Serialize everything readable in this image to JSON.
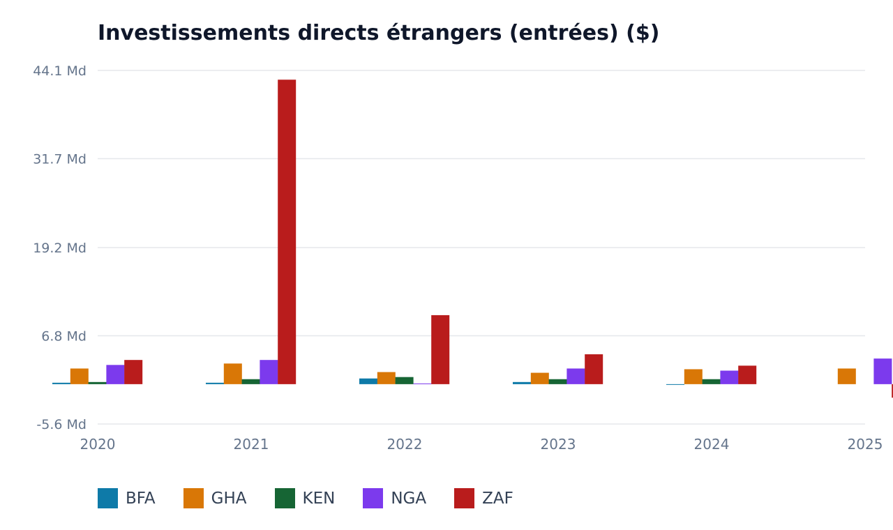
{
  "chart_data": {
    "type": "bar",
    "title": "Investissements directs étrangers (entrées) ($)",
    "xlabel": "",
    "ylabel": "",
    "categories": [
      "2020",
      "2021",
      "2022",
      "2023",
      "2024",
      "2025"
    ],
    "y_ticks": [
      {
        "value": 44.1,
        "label": "44.1 Md"
      },
      {
        "value": 31.7,
        "label": "31.7 Md"
      },
      {
        "value": 19.2,
        "label": "19.2 Md"
      },
      {
        "value": 6.8,
        "label": "6.8 Md"
      },
      {
        "value": -5.6,
        "label": "-5.6 Md"
      }
    ],
    "ylim": [
      -5.6,
      44.1
    ],
    "grid": true,
    "legend_position": "bottom-left",
    "series": [
      {
        "name": "BFA",
        "color": "#0e7aa8",
        "values": [
          0.2,
          0.2,
          0.8,
          0.3,
          0.0,
          null
        ]
      },
      {
        "name": "GHA",
        "color": "#d97706",
        "values": [
          2.2,
          2.9,
          1.7,
          1.6,
          2.1,
          2.2
        ]
      },
      {
        "name": "KEN",
        "color": "#166534",
        "values": [
          0.3,
          0.7,
          1.0,
          0.7,
          0.7,
          null
        ]
      },
      {
        "name": "NGA",
        "color": "#7c3aed",
        "values": [
          2.7,
          3.4,
          0.1,
          2.2,
          1.9,
          3.6
        ]
      },
      {
        "name": "ZAF",
        "color": "#b91c1c",
        "values": [
          3.4,
          42.8,
          9.7,
          4.2,
          2.6,
          -1.9
        ]
      }
    ]
  }
}
